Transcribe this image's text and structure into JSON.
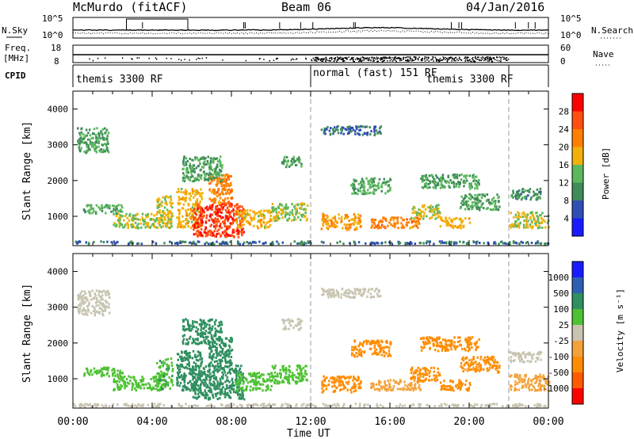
{
  "header": {
    "title": "McMurdo (fitACF)",
    "beam": "Beam 06",
    "date": "04/Jan/2016"
  },
  "top_panels": {
    "nsky_label": "N.Sky",
    "nsky_ticks": [
      "10^5",
      "10^0"
    ],
    "nsearch_label": "N.Search",
    "nsearch_ticks": [
      "10^5",
      "10^0"
    ],
    "freq_label_line1": "Freq.",
    "freq_label_line2": "[MHz]",
    "freq_ticks": [
      "18",
      "8"
    ],
    "nave_label": "Nave",
    "nave_ticks": [
      "60",
      "0"
    ],
    "cpid_label": "CPID",
    "cpid_segments": [
      "themis 3300 RF",
      "normal (fast) 151 RF",
      "themis 3300 RF"
    ],
    "cpid_boundaries_hours": [
      12.0,
      22.0
    ]
  },
  "colors": {
    "power_scale": [
      "#1a1aff",
      "#2f4fb4",
      "#3f8b5a",
      "#5cb85c",
      "#f2b10a",
      "#ff7f00",
      "#ff5010",
      "#ff0000"
    ],
    "velocity_scale": [
      "#ff0000",
      "#ff5a00",
      "#ff8c00",
      "#f4a23a",
      "#c8c4b0",
      "#4fc234",
      "#2f8f5f",
      "#2f5fb4",
      "#1a1aff"
    ]
  },
  "chart_data": [
    {
      "type": "heatmap",
      "name": "power",
      "xlabel": "",
      "ylabel": "Slant Range [km]",
      "xlim_hours": [
        0,
        24
      ],
      "ylim_km": [
        180,
        4500
      ],
      "yticks": [
        1000,
        2000,
        3000,
        4000
      ],
      "colorbar_label": "Power [dB]",
      "colorbar_ticks": [
        "4",
        "8",
        "12",
        "16",
        "20",
        "24",
        "28"
      ],
      "colorbar_range": [
        0,
        32
      ],
      "echo_regions": [
        {
          "t0": 0.0,
          "t1": 24.0,
          "r0": 250,
          "r1": 330,
          "value": 8
        },
        {
          "t0": 0.2,
          "t1": 1.8,
          "r0": 2800,
          "r1": 3500,
          "value": 12
        },
        {
          "t0": 0.5,
          "t1": 2.5,
          "r0": 1100,
          "r1": 1350,
          "value": 13
        },
        {
          "t0": 2.0,
          "t1": 4.5,
          "r0": 700,
          "r1": 1100,
          "value": 16
        },
        {
          "t0": 4.2,
          "t1": 5.0,
          "r0": 700,
          "r1": 1600,
          "value": 17
        },
        {
          "t0": 5.2,
          "t1": 6.5,
          "r0": 700,
          "r1": 1800,
          "value": 18
        },
        {
          "t0": 6.0,
          "t1": 8.6,
          "r0": 450,
          "r1": 1400,
          "value": 27
        },
        {
          "t0": 6.8,
          "t1": 8.0,
          "r0": 1400,
          "r1": 2200,
          "value": 22
        },
        {
          "t0": 8.2,
          "t1": 10.0,
          "r0": 700,
          "r1": 1200,
          "value": 18
        },
        {
          "t0": 5.5,
          "t1": 7.5,
          "r0": 2000,
          "r1": 2700,
          "value": 12
        },
        {
          "t0": 10.0,
          "t1": 11.8,
          "r0": 900,
          "r1": 1400,
          "value": 15
        },
        {
          "t0": 10.5,
          "t1": 11.5,
          "r0": 2400,
          "r1": 2700,
          "value": 12
        },
        {
          "t0": 12.5,
          "t1": 14.5,
          "r0": 650,
          "r1": 1100,
          "value": 20
        },
        {
          "t0": 14.0,
          "t1": 16.0,
          "r0": 1650,
          "r1": 2100,
          "value": 13
        },
        {
          "t0": 15.0,
          "t1": 17.5,
          "r0": 700,
          "r1": 1000,
          "value": 22
        },
        {
          "t0": 17.0,
          "t1": 18.5,
          "r0": 950,
          "r1": 1350,
          "value": 17
        },
        {
          "t0": 17.5,
          "t1": 20.5,
          "r0": 1800,
          "r1": 2200,
          "value": 12
        },
        {
          "t0": 18.5,
          "t1": 20.0,
          "r0": 700,
          "r1": 1000,
          "value": 19
        },
        {
          "t0": 19.5,
          "t1": 21.5,
          "r0": 1200,
          "r1": 1650,
          "value": 12
        },
        {
          "t0": 22.0,
          "t1": 24.0,
          "r0": 700,
          "r1": 1150,
          "value": 16
        },
        {
          "t0": 22.0,
          "t1": 23.6,
          "r0": 1500,
          "r1": 1800,
          "value": 10
        },
        {
          "t0": 12.5,
          "t1": 15.5,
          "r0": 3300,
          "r1": 3550,
          "value": 8
        }
      ]
    },
    {
      "type": "heatmap",
      "name": "velocity",
      "xlabel": "Time UT",
      "ylabel": "Slant Range [km]",
      "xlim_hours": [
        0,
        24
      ],
      "ylim_km": [
        180,
        4500
      ],
      "xticks": [
        "00:00",
        "04:00",
        "08:00",
        "12:00",
        "16:00",
        "20:00",
        "00:00"
      ],
      "yticks": [
        1000,
        2000,
        3000,
        4000
      ],
      "colorbar_label": "Velocity [m s⁻¹]",
      "colorbar_ticks": [
        "-1000",
        "-500",
        "-100",
        "-25",
        "25",
        "100",
        "500",
        "1000"
      ],
      "echo_regions": [
        {
          "t0": 0.0,
          "t1": 24.0,
          "r0": 250,
          "r1": 330,
          "value": 0
        },
        {
          "t0": 0.2,
          "t1": 1.8,
          "r0": 2800,
          "r1": 3500,
          "value": 10
        },
        {
          "t0": 0.5,
          "t1": 2.5,
          "r0": 1100,
          "r1": 1350,
          "value": 60
        },
        {
          "t0": 2.0,
          "t1": 4.5,
          "r0": 700,
          "r1": 1100,
          "value": 80
        },
        {
          "t0": 4.2,
          "t1": 5.0,
          "r0": 700,
          "r1": 1600,
          "value": 90
        },
        {
          "t0": 5.2,
          "t1": 6.5,
          "r0": 700,
          "r1": 1800,
          "value": 150
        },
        {
          "t0": 6.0,
          "t1": 8.6,
          "r0": 450,
          "r1": 1400,
          "value": 300
        },
        {
          "t0": 6.8,
          "t1": 8.0,
          "r0": 1400,
          "r1": 2200,
          "value": 250
        },
        {
          "t0": 8.2,
          "t1": 10.0,
          "r0": 700,
          "r1": 1200,
          "value": 80
        },
        {
          "t0": 5.5,
          "t1": 7.5,
          "r0": 2000,
          "r1": 2700,
          "value": 200
        },
        {
          "t0": 10.0,
          "t1": 11.8,
          "r0": 900,
          "r1": 1400,
          "value": 70
        },
        {
          "t0": 10.5,
          "t1": 11.5,
          "r0": 2400,
          "r1": 2700,
          "value": 10
        },
        {
          "t0": 12.5,
          "t1": 14.5,
          "r0": 650,
          "r1": 1100,
          "value": -150
        },
        {
          "t0": 14.0,
          "t1": 16.0,
          "r0": 1650,
          "r1": 2100,
          "value": -200
        },
        {
          "t0": 15.0,
          "t1": 17.5,
          "r0": 700,
          "r1": 1000,
          "value": -80
        },
        {
          "t0": 17.0,
          "t1": 18.5,
          "r0": 950,
          "r1": 1350,
          "value": -300
        },
        {
          "t0": 17.5,
          "t1": 20.5,
          "r0": 1800,
          "r1": 2200,
          "value": -200
        },
        {
          "t0": 18.5,
          "t1": 20.0,
          "r0": 700,
          "r1": 1000,
          "value": -150
        },
        {
          "t0": 19.5,
          "t1": 21.5,
          "r0": 1200,
          "r1": 1650,
          "value": -120
        },
        {
          "t0": 22.0,
          "t1": 24.0,
          "r0": 700,
          "r1": 1150,
          "value": -80
        },
        {
          "t0": 22.0,
          "t1": 23.6,
          "r0": 1500,
          "r1": 1800,
          "value": 10
        },
        {
          "t0": 12.5,
          "t1": 15.5,
          "r0": 3300,
          "r1": 3550,
          "value": 5
        }
      ]
    }
  ]
}
